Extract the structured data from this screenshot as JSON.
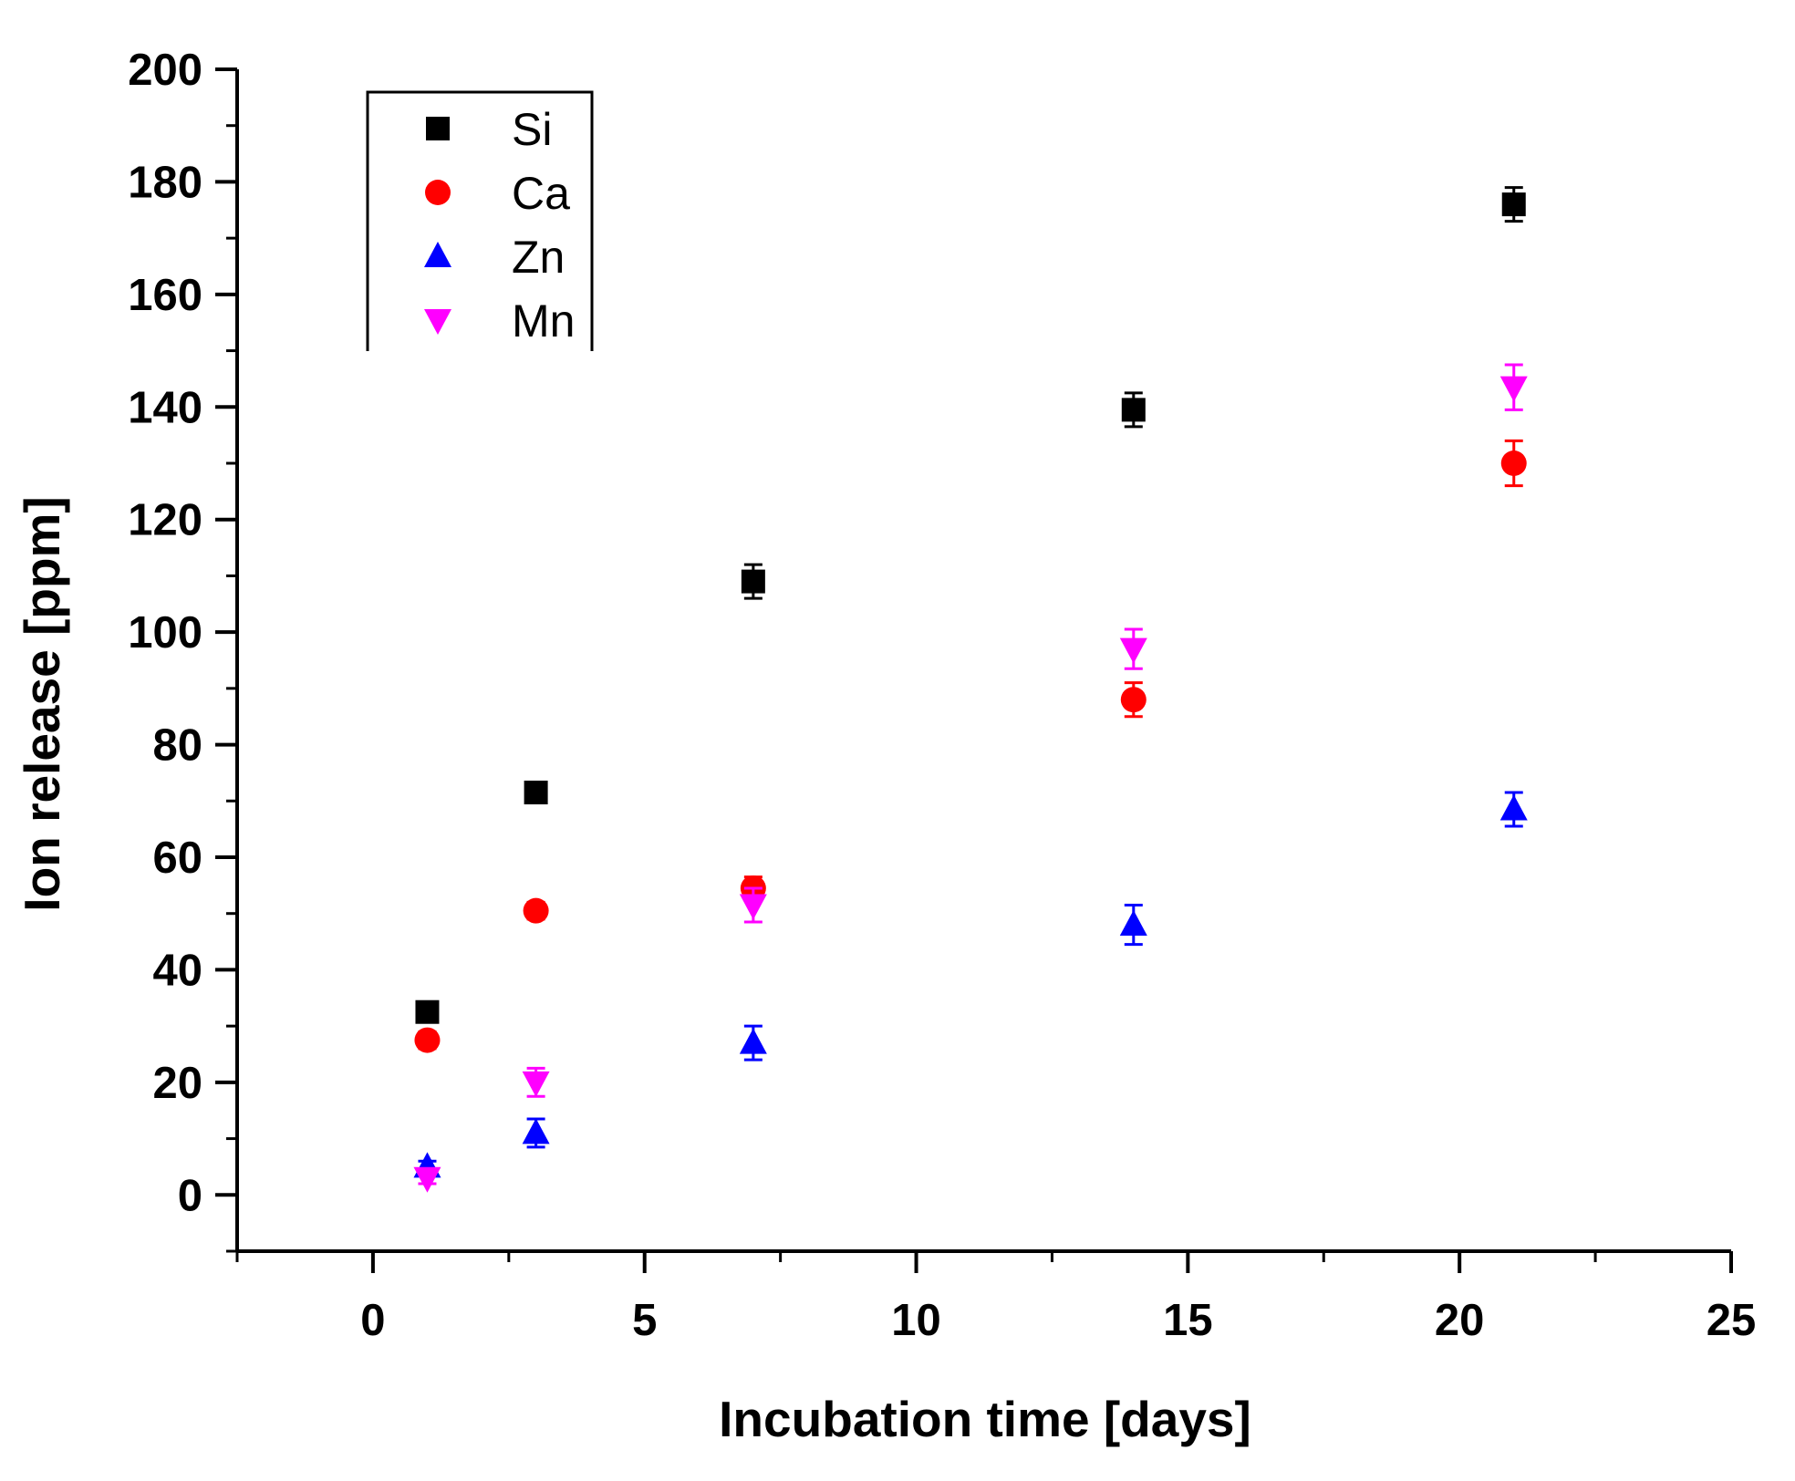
{
  "chart_data": {
    "type": "scatter",
    "title": "",
    "xlabel": "Incubation time [days]",
    "ylabel": "Ion release [ppm]",
    "xlim": [
      -2.5,
      25
    ],
    "ylim": [
      -10,
      200
    ],
    "x_ticks": [
      0,
      5,
      10,
      15,
      20,
      25
    ],
    "x_tick_labels": [
      "0",
      "5",
      "10",
      "15",
      "20",
      "25"
    ],
    "y_ticks": [
      0,
      20,
      40,
      60,
      80,
      100,
      120,
      140,
      160,
      180,
      200
    ],
    "y_tick_labels": [
      "0",
      "20",
      "40",
      "60",
      "80",
      "100",
      "120",
      "140",
      "160",
      "180",
      "200"
    ],
    "grid": false,
    "legend_position": "top-left",
    "series": [
      {
        "name": "Si",
        "marker": "square",
        "color": "#000000",
        "points": [
          {
            "x": 1,
            "y": 32.5,
            "err": 1.5
          },
          {
            "x": 3,
            "y": 71.5,
            "err": 1.5
          },
          {
            "x": 7,
            "y": 109,
            "err": 3
          },
          {
            "x": 14,
            "y": 139.5,
            "err": 3
          },
          {
            "x": 21,
            "y": 176,
            "err": 3
          }
        ]
      },
      {
        "name": "Ca",
        "marker": "circle",
        "color": "#ff0000",
        "points": [
          {
            "x": 1,
            "y": 27.5,
            "err": 1.5
          },
          {
            "x": 3,
            "y": 50.5,
            "err": 1.5
          },
          {
            "x": 7,
            "y": 54.5,
            "err": 2
          },
          {
            "x": 14,
            "y": 88,
            "err": 3
          },
          {
            "x": 21,
            "y": 130,
            "err": 4
          }
        ]
      },
      {
        "name": "Zn",
        "marker": "triangle-up",
        "color": "#0000ff",
        "points": [
          {
            "x": 1,
            "y": 5,
            "err": 1
          },
          {
            "x": 3,
            "y": 11,
            "err": 2.5
          },
          {
            "x": 7,
            "y": 27,
            "err": 3
          },
          {
            "x": 14,
            "y": 48,
            "err": 3.5
          },
          {
            "x": 21,
            "y": 68.5,
            "err": 3
          }
        ]
      },
      {
        "name": "Mn",
        "marker": "triangle-down",
        "color": "#ff00ff",
        "points": [
          {
            "x": 1,
            "y": 3,
            "err": 1
          },
          {
            "x": 3,
            "y": 20,
            "err": 2.5
          },
          {
            "x": 7,
            "y": 51.5,
            "err": 3
          },
          {
            "x": 14,
            "y": 97,
            "err": 3.5
          },
          {
            "x": 21,
            "y": 143.5,
            "err": 4
          }
        ]
      }
    ]
  }
}
